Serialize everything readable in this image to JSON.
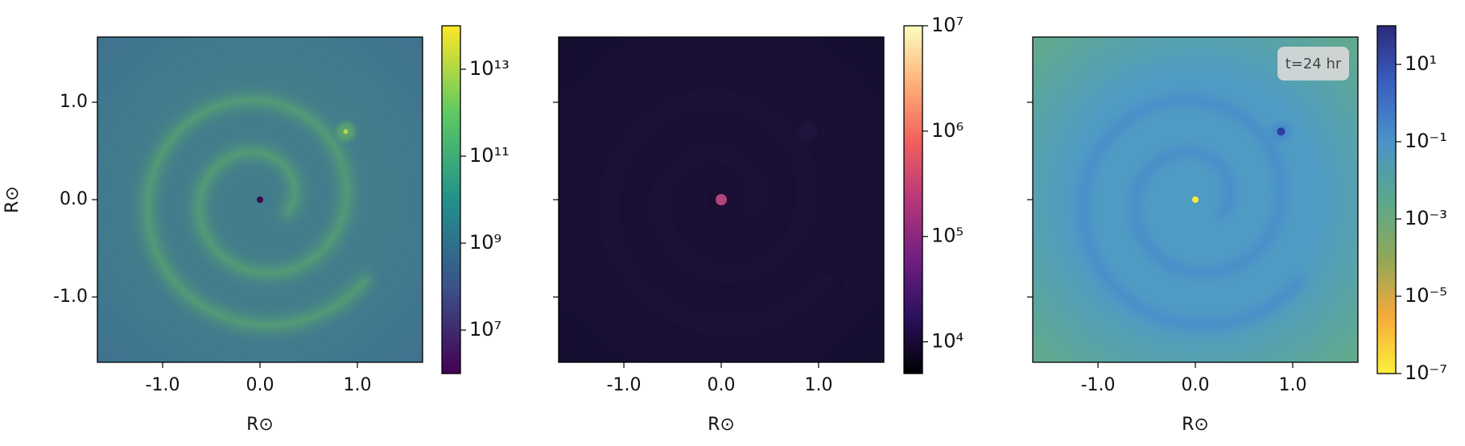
{
  "chart_data": [
    {
      "type": "heatmap",
      "xlabel": "R⊙",
      "ylabel": "R⊙",
      "xlim": [
        -1.67,
        1.67
      ],
      "ylim": [
        -1.67,
        1.67
      ],
      "xticks": [
        {
          "value": -1,
          "label": "-1.0"
        },
        {
          "value": 0,
          "label": "0.0"
        },
        {
          "value": 1,
          "label": "1.0"
        }
      ],
      "yticks": [
        {
          "value": -1,
          "label": "-1.0"
        },
        {
          "value": 0,
          "label": "0.0"
        },
        {
          "value": 1,
          "label": "1.0"
        }
      ],
      "ytick_labels": true,
      "colorbar": {
        "scale": "log",
        "lim": [
          1000000.0,
          100000000000000.0
        ],
        "ticks": [
          {
            "value": 10000000.0,
            "label": "10⁷"
          },
          {
            "value": 1000000000.0,
            "label": "10⁹"
          },
          {
            "value": 100000000000.0,
            "label": "10¹¹"
          },
          {
            "value": 10000000000000.0,
            "label": "10¹³"
          }
        ],
        "colors": [
          "#440154",
          "#3b528b",
          "#21918c",
          "#5ec962",
          "#fde725"
        ]
      }
    },
    {
      "type": "heatmap",
      "xlabel": "R⊙",
      "xlim": [
        -1.67,
        1.67
      ],
      "ylim": [
        -1.67,
        1.67
      ],
      "xticks": [
        {
          "value": -1,
          "label": "-1.0"
        },
        {
          "value": 0,
          "label": "0.0"
        },
        {
          "value": 1,
          "label": "1.0"
        }
      ],
      "yticks": [
        -1,
        0,
        1
      ],
      "ytick_labels": false,
      "colorbar": {
        "scale": "log",
        "lim": [
          5000,
          10000000.0
        ],
        "ticks": [
          {
            "value": 10000.0,
            "label": "10⁴"
          },
          {
            "value": 100000.0,
            "label": "10⁵"
          },
          {
            "value": 1000000.0,
            "label": "10⁶"
          },
          {
            "value": 10000000.0,
            "label": "10⁷"
          }
        ],
        "colors": [
          "#000004",
          "#2c115f",
          "#721f81",
          "#b73779",
          "#f1605d",
          "#feb078",
          "#fcfdbf"
        ]
      }
    },
    {
      "type": "heatmap",
      "xlabel": "R⊙",
      "annotation": "t=24 hr",
      "xlim": [
        -1.67,
        1.67
      ],
      "ylim": [
        -1.67,
        1.67
      ],
      "xticks": [
        {
          "value": -1,
          "label": "-1.0"
        },
        {
          "value": 0,
          "label": "0.0"
        },
        {
          "value": 1,
          "label": "1.0"
        }
      ],
      "yticks": [
        -1,
        0,
        1
      ],
      "ytick_labels": false,
      "colorbar": {
        "scale": "log",
        "lim": [
          1e-07,
          100
        ],
        "ticks": [
          {
            "value": 1e-07,
            "label": "10⁻⁷"
          },
          {
            "value": 1e-05,
            "label": "10⁻⁵"
          },
          {
            "value": 0.001,
            "label": "10⁻³"
          },
          {
            "value": 0.1,
            "label": "10⁻¹"
          },
          {
            "value": 10,
            "label": "10¹"
          }
        ],
        "colors": [
          "#fcef3c",
          "#f4a93a",
          "#8fa85a",
          "#5aa88c",
          "#4b93c8",
          "#3a5fc0",
          "#2b2a7a"
        ]
      }
    }
  ]
}
